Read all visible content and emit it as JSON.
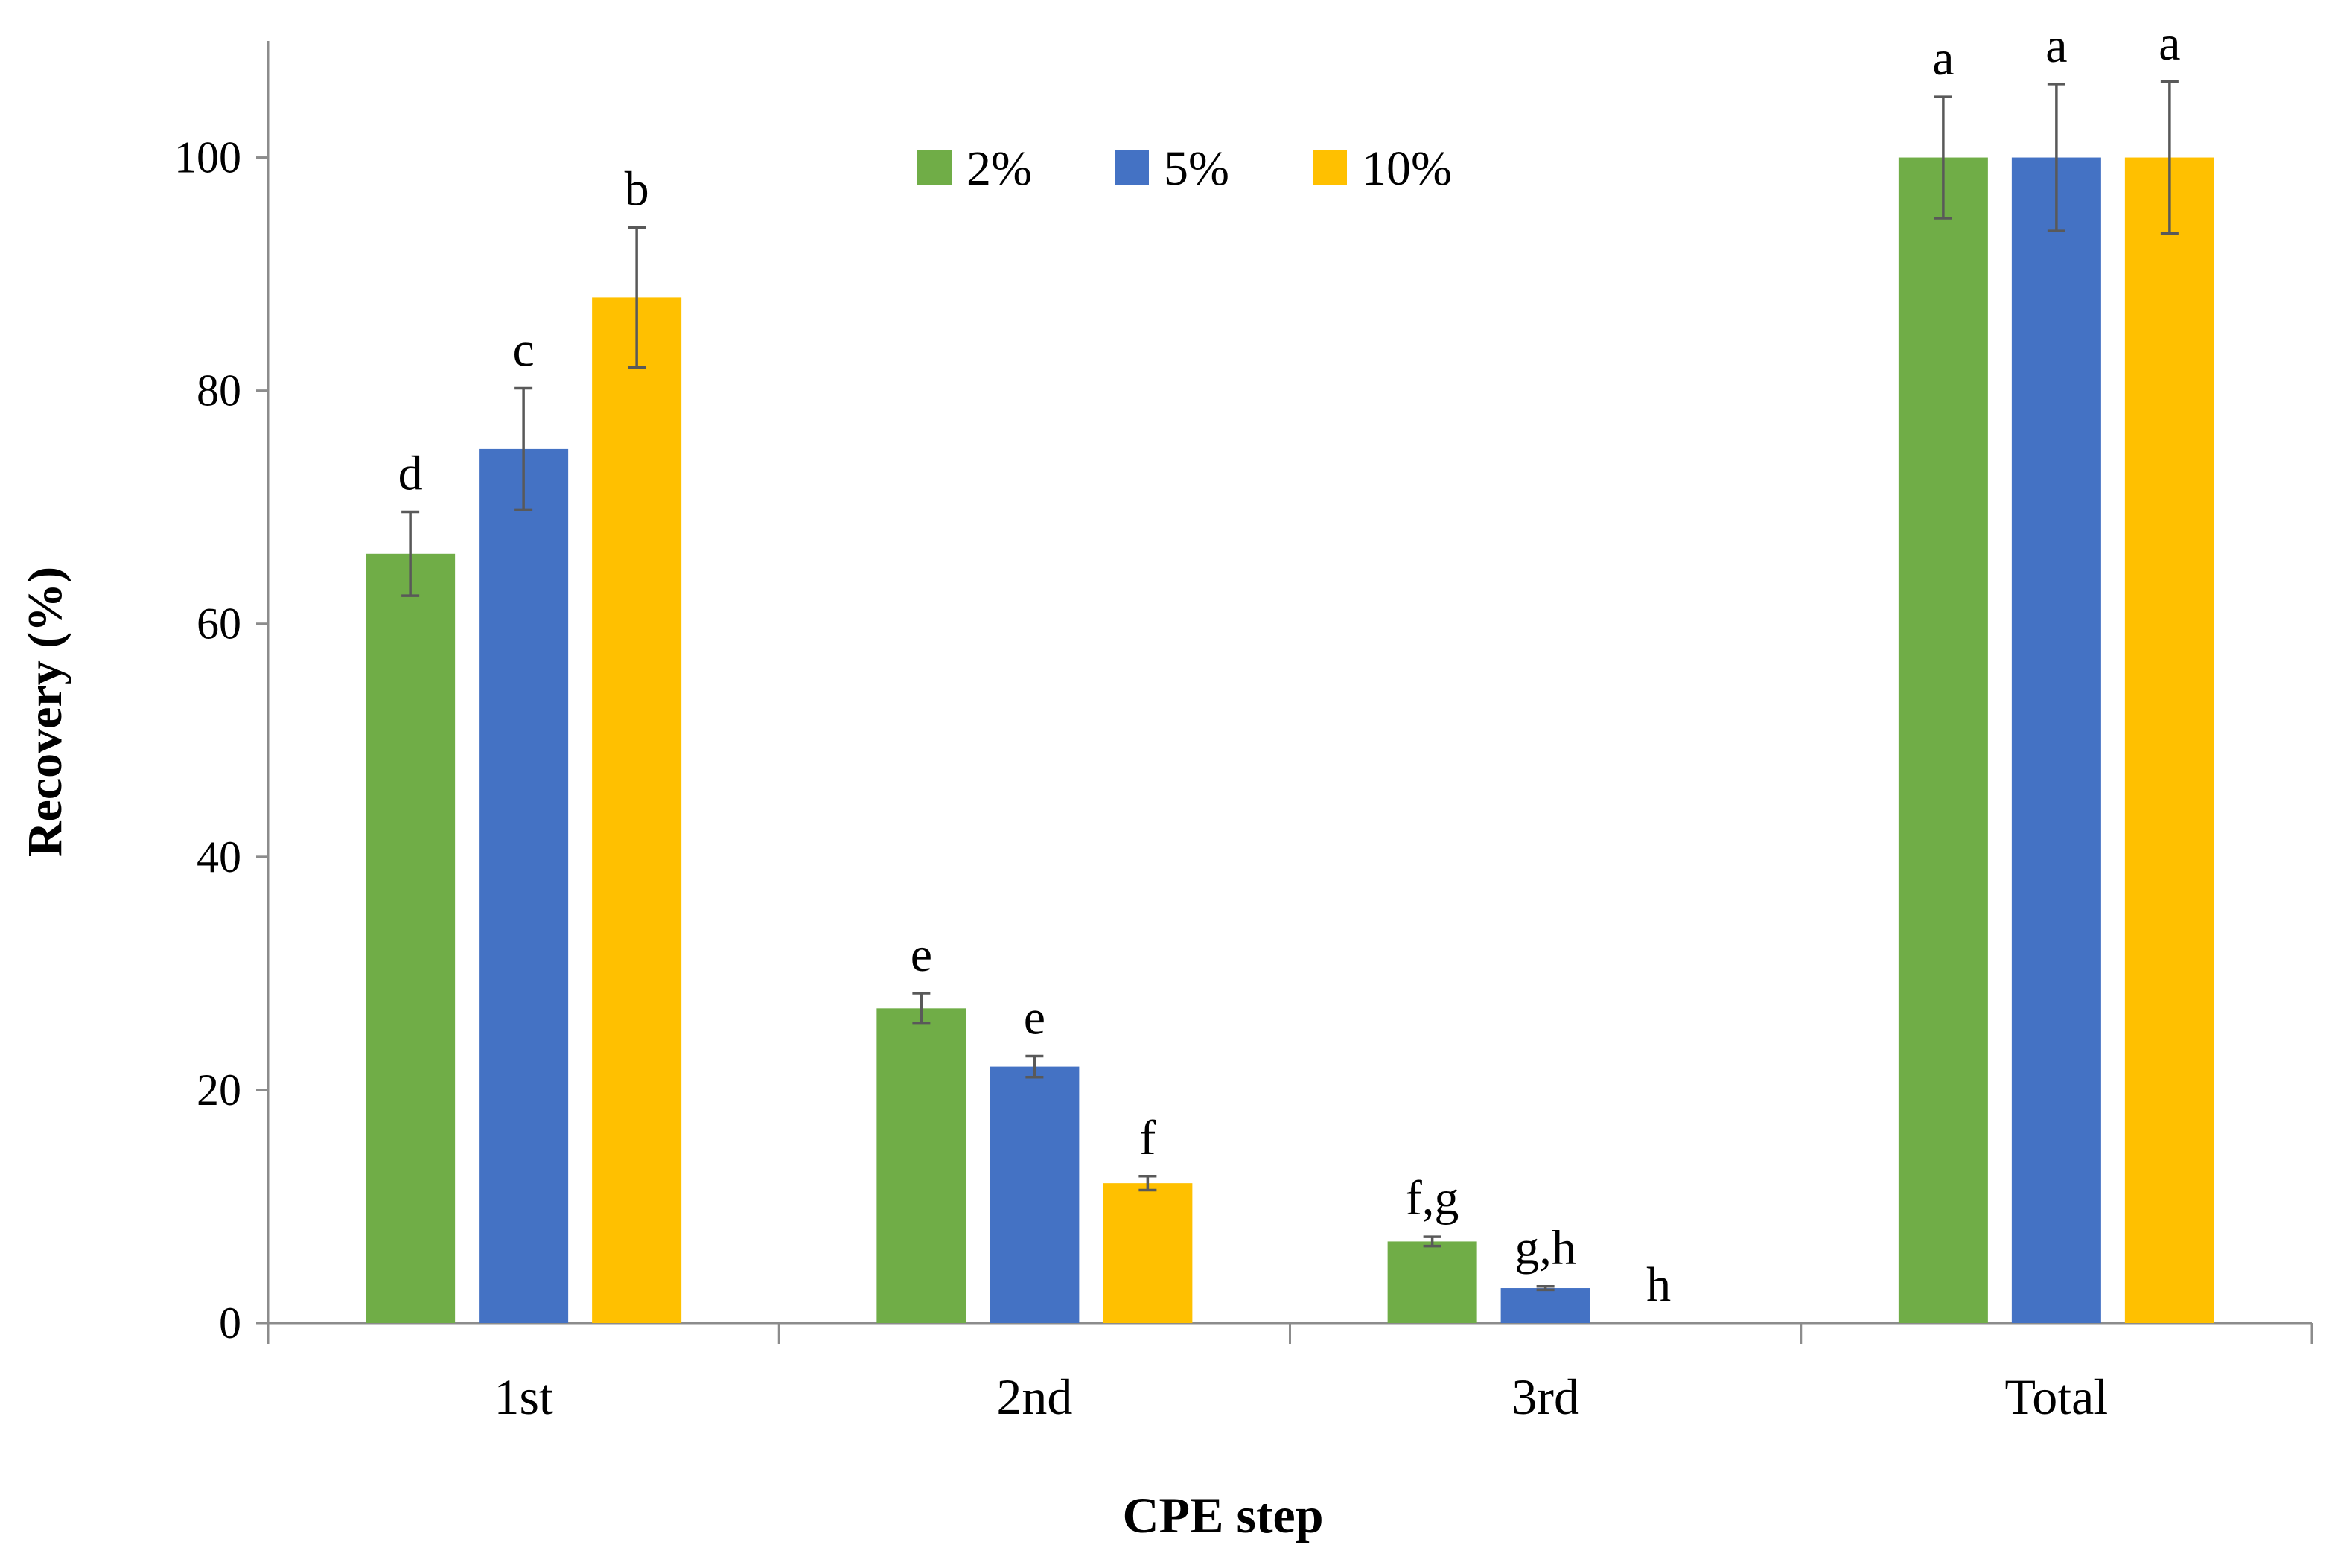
{
  "chart_data": {
    "type": "bar",
    "title": "",
    "xlabel": "CPE step",
    "ylabel": "Recovery (%)",
    "ylim": [
      0,
      110
    ],
    "yticks": [
      0,
      20,
      40,
      60,
      80,
      100
    ],
    "grid": false,
    "legend_position": "top-center",
    "categories": [
      "1st",
      "2nd",
      "3rd",
      "Total"
    ],
    "series": [
      {
        "name": "2%",
        "color": "#70AD47",
        "values": [
          66,
          27,
          7,
          100
        ],
        "errors": [
          3.6,
          1.3,
          0.4,
          5.2
        ],
        "letters": [
          "d",
          "e",
          "f,g",
          "a"
        ]
      },
      {
        "name": "5%",
        "color": "#4472C4",
        "values": [
          75,
          22,
          3,
          100
        ],
        "errors": [
          5.2,
          0.9,
          0.15,
          6.3
        ],
        "letters": [
          "c",
          "e",
          "g,h",
          "a"
        ]
      },
      {
        "name": "10%",
        "color": "#FFC000",
        "values": [
          88,
          12,
          0,
          100
        ],
        "errors": [
          6.0,
          0.6,
          0,
          6.5
        ],
        "letters": [
          "b",
          "f",
          "h",
          "a"
        ]
      }
    ]
  }
}
